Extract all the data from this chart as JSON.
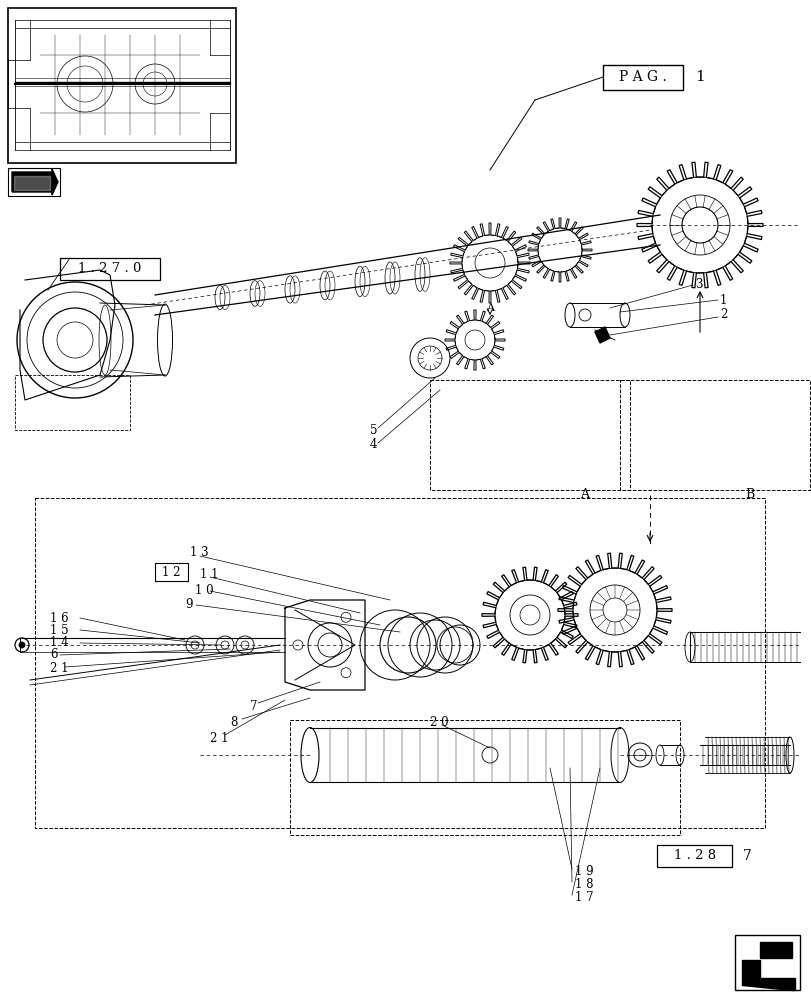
{
  "bg_color": "#ffffff",
  "line_color": "#000000",
  "fig_width": 8.12,
  "fig_height": 10.0,
  "dpi": 100,
  "labels": {
    "PAG": "P A G .",
    "pag_num": "1",
    "ref1": "1 . 2 7 . 0",
    "ref2": "1 . 2 8",
    "ref3": "7",
    "A_label": "A",
    "B_label": "B"
  },
  "part_numbers": [
    "1",
    "2",
    "3",
    "4",
    "5",
    "6",
    "7",
    "8",
    "9",
    "10",
    "11",
    "12",
    "13",
    "14",
    "15",
    "16",
    "17",
    "18",
    "19",
    "20",
    "21"
  ]
}
